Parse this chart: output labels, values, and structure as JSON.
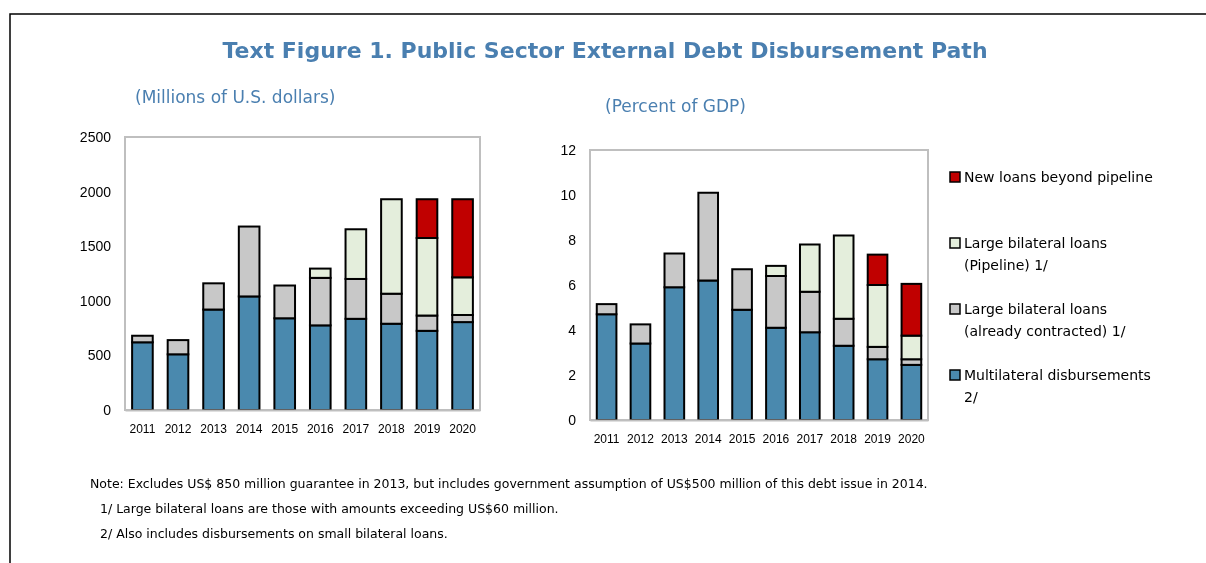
{
  "chart_data": [
    {
      "type": "bar",
      "title": "Text Figure 1. Public Sector External Debt Disbursement Path",
      "subtitle": "(Millions of U.S. dollars)",
      "categories": [
        "2011",
        "2012",
        "2013",
        "2014",
        "2015",
        "2016",
        "2017",
        "2018",
        "2019",
        "2020"
      ],
      "stacked": true,
      "ylim": [
        0,
        2500
      ],
      "yticks": [
        0,
        500,
        1000,
        1500,
        2000,
        2500
      ],
      "grid": false,
      "legend": false,
      "series": [
        {
          "color": "#4a89ae",
          "values": [
            620,
            510,
            920,
            1040,
            840,
            775,
            835,
            790,
            725,
            805
          ]
        },
        {
          "color": "#c8c8c8",
          "values": [
            60,
            130,
            240,
            640,
            300,
            435,
            365,
            275,
            140,
            65
          ]
        },
        {
          "color": "#e4eedc",
          "values": [
            null,
            null,
            null,
            null,
            null,
            85,
            455,
            865,
            710,
            345
          ]
        },
        {
          "color": "#c00000",
          "values": [
            null,
            null,
            null,
            null,
            null,
            null,
            null,
            null,
            355,
            715
          ]
        }
      ],
      "annotations": [
        "Note: Excludes US$ 850 million guarantee in 2013, but includes government assumption of US$500 million of this debt issue in 2014.",
        "1/ Large bilateral loans are those with  amounts exceeding US$60 million.",
        "2/ Also includes disbursements on small bilateral loans."
      ]
    },
    {
      "type": "bar",
      "subtitle": "(Percent of GDP)",
      "categories": [
        "2011",
        "2012",
        "2013",
        "2014",
        "2015",
        "2016",
        "2017",
        "2018",
        "2019",
        "2020"
      ],
      "stacked": true,
      "ylim": [
        0,
        12
      ],
      "yticks": [
        0,
        2,
        4,
        6,
        8,
        10,
        12
      ],
      "grid": false,
      "legend": "right",
      "series": [
        {
          "name": "Multilateral disbursements 2/",
          "color": "#4a89ae",
          "values": [
            4.7,
            3.4,
            5.9,
            6.2,
            4.9,
            4.1,
            3.9,
            3.3,
            2.7,
            2.45
          ]
        },
        {
          "name": "Large bilateral loans (already contracted) 1/",
          "color": "#c8c8c8",
          "values": [
            0.45,
            0.85,
            1.5,
            3.9,
            1.8,
            2.3,
            1.8,
            1.2,
            0.55,
            0.25
          ]
        },
        {
          "name": "Large bilateral loans (Pipeline) 1/",
          "color": "#e4eedc",
          "values": [
            null,
            null,
            null,
            null,
            null,
            0.45,
            2.1,
            3.7,
            2.75,
            1.05
          ]
        },
        {
          "name": "New loans beyond pipeline",
          "color": "#c00000",
          "values": [
            null,
            null,
            null,
            null,
            null,
            null,
            null,
            null,
            1.35,
            2.3
          ]
        }
      ]
    }
  ]
}
